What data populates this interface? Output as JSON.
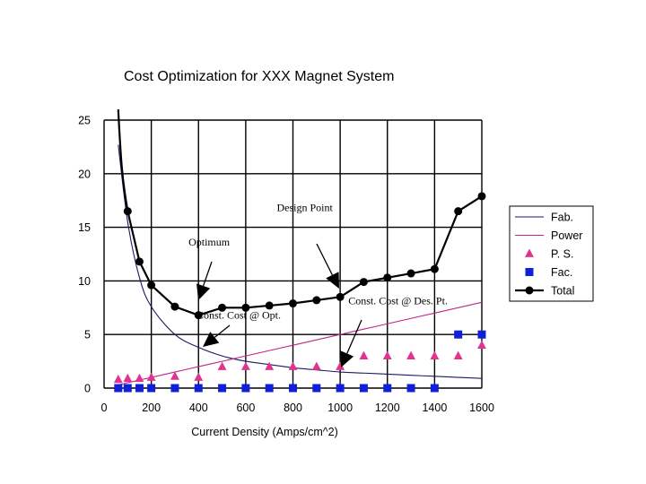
{
  "chart_data": {
    "type": "line",
    "title": "Cost Optimization for XXX Magnet System",
    "xlabel": "Current Density (Amps/cm^2)",
    "ylabel": "",
    "xlim": [
      0,
      1600
    ],
    "ylim": [
      0,
      25
    ],
    "grid": true,
    "x_ticks": [
      "0",
      "200",
      "400",
      "600",
      "800",
      "1000",
      "1200",
      "1400",
      "1600"
    ],
    "y_ticks": [
      "0",
      "5",
      "10",
      "15",
      "20",
      "25"
    ],
    "x": [
      60,
      100,
      150,
      200,
      300,
      400,
      500,
      600,
      700,
      800,
      900,
      1000,
      1100,
      1200,
      1300,
      1400,
      1500,
      1600
    ],
    "series": [
      {
        "name": "Fab.",
        "style": "line",
        "color": "#1a1a66",
        "values": [
          22.7,
          15.5,
          10.3,
          7.6,
          5.0,
          3.8,
          3.0,
          2.5,
          2.2,
          1.9,
          1.7,
          1.5,
          1.4,
          1.3,
          1.2,
          1.1,
          1.0,
          0.9
        ]
      },
      {
        "name": "Power",
        "style": "line",
        "color": "#c0248a",
        "values": [
          0.3,
          0.5,
          0.75,
          1.0,
          1.5,
          2.0,
          2.5,
          3.0,
          3.5,
          4.0,
          4.5,
          5.0,
          5.5,
          6.0,
          6.5,
          7.0,
          7.5,
          8.0
        ]
      },
      {
        "name": "P. S.",
        "style": "triangle",
        "color": "#e0348f",
        "values": [
          0.8,
          0.9,
          0.9,
          1.0,
          1.1,
          1.0,
          2.0,
          2.0,
          2.0,
          2.0,
          2.0,
          2.0,
          3.0,
          3.0,
          3.0,
          3.0,
          3.0,
          4.0
        ]
      },
      {
        "name": "Fac.",
        "style": "square",
        "color": "#1020d8",
        "values": [
          0.0,
          0.0,
          0.0,
          0.0,
          0.0,
          0.0,
          0.0,
          0.0,
          0.0,
          0.0,
          0.0,
          0.0,
          0.0,
          0.0,
          0.0,
          0.0,
          5.0,
          5.0
        ]
      },
      {
        "name": "Total",
        "style": "line-dot",
        "color": "#000000",
        "values": [
          null,
          16.5,
          11.8,
          9.6,
          7.6,
          6.8,
          7.5,
          7.5,
          7.7,
          7.9,
          8.2,
          8.5,
          9.9,
          10.3,
          10.7,
          11.1,
          16.5,
          17.9
        ]
      }
    ],
    "total_curve_start": {
      "x": 60,
      "y": 26
    },
    "annotations": [
      {
        "text": "Design Point",
        "x": 850,
        "y": 16.5
      },
      {
        "text": "Optimum",
        "x": 445,
        "y": 13.3
      },
      {
        "text": "Const. Cost @ Opt.",
        "x": 570,
        "y": 6.5
      },
      {
        "text": "Const. Cost @ Des. Pt.",
        "x": 1245,
        "y": 7.8
      }
    ],
    "legend_position": "right"
  }
}
